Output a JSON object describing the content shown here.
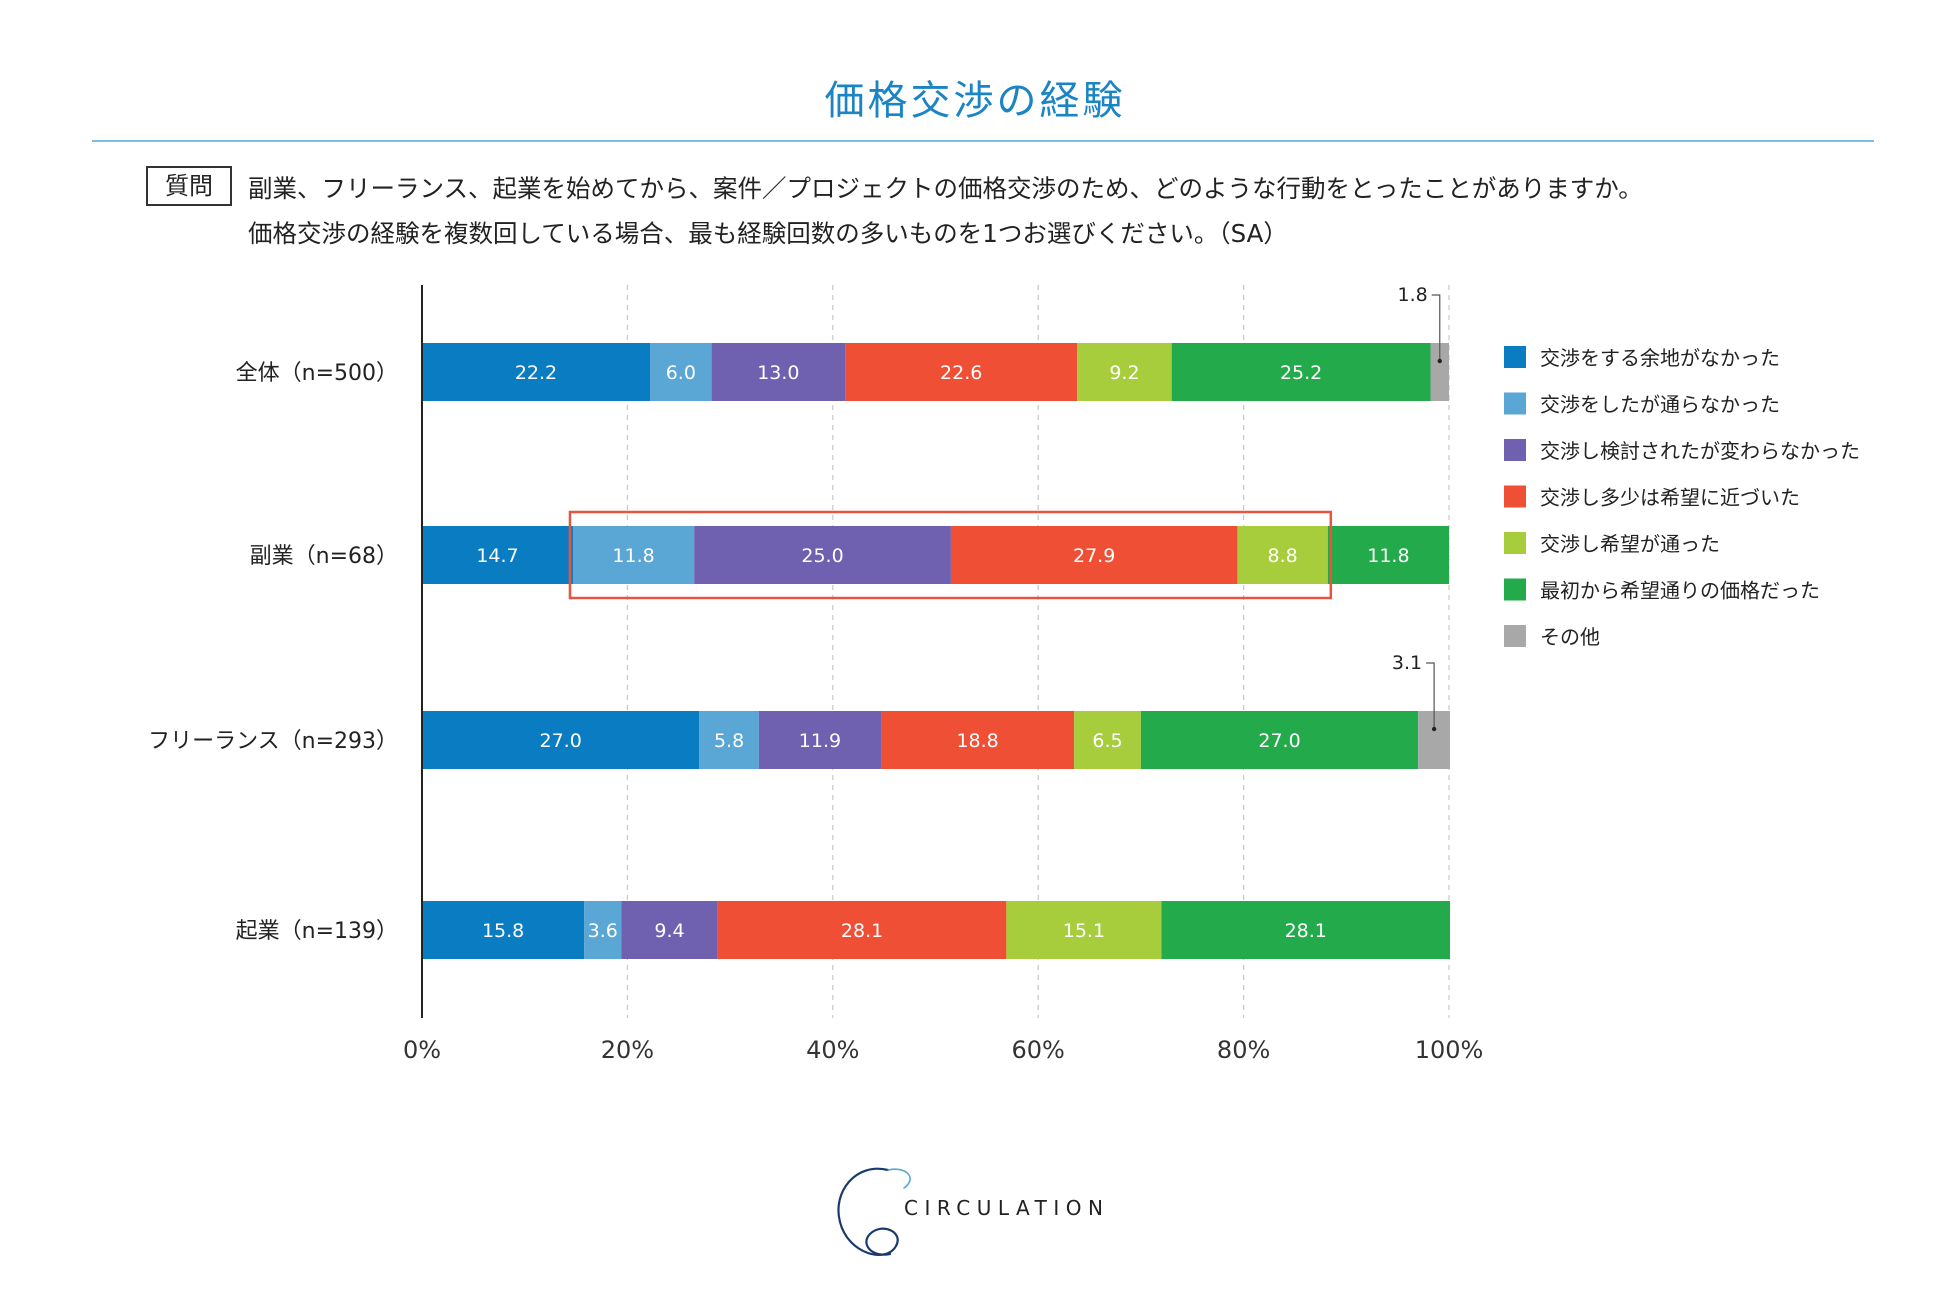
{
  "title": "価格交渉の経験",
  "question": {
    "label": "質問",
    "line1": "副業、フリーランス、起業を始めてから、案件／プロジェクトの価格交渉のため、どのような行動をとったことがありますか。",
    "line2": "価格交渉の経験を複数回している場合、最も経験回数の多いものを1つお選びください。（SA）"
  },
  "chart_data": {
    "type": "bar",
    "orientation": "horizontal",
    "stacked": true,
    "title": "価格交渉の経験",
    "categories": [
      "全体（n=500）",
      "副業（n=68）",
      "フリーランス（n=293）",
      "起業（n=139）"
    ],
    "series": [
      {
        "name": "交渉をする余地がなかった",
        "color": "#0a7cc1",
        "values": [
          22.2,
          14.7,
          27.0,
          15.8
        ]
      },
      {
        "name": "交渉をしたが通らなかった",
        "color": "#5aa6d4",
        "values": [
          6.0,
          11.8,
          5.8,
          3.6
        ]
      },
      {
        "name": "交渉し検討されたが変わらなかった",
        "color": "#7060b0",
        "values": [
          13.0,
          25.0,
          11.9,
          9.4
        ]
      },
      {
        "name": "交渉し多少は希望に近づいた",
        "color": "#ef4f34",
        "values": [
          22.6,
          27.9,
          18.8,
          28.1
        ]
      },
      {
        "name": "交渉し希望が通った",
        "color": "#a8cd3c",
        "values": [
          9.2,
          8.8,
          6.5,
          15.1
        ]
      },
      {
        "name": "最初から希望通りの価格だった",
        "color": "#23aa4a",
        "values": [
          25.2,
          11.8,
          27.0,
          28.1
        ]
      },
      {
        "name": "その他",
        "color": "#a8a8a8",
        "values": [
          1.8,
          0,
          3.1,
          0
        ]
      }
    ],
    "value_labels": [
      [
        "22.2",
        "6.0",
        "13.0",
        "22.6",
        "9.2",
        "25.2",
        "1.8"
      ],
      [
        "14.7",
        "11.8",
        "25.0",
        "27.9",
        "8.8",
        "11.8",
        ""
      ],
      [
        "27.0",
        "5.8",
        "11.9",
        "18.8",
        "6.5",
        "27.0",
        "3.1"
      ],
      [
        "15.8",
        "3.6",
        "9.4",
        "28.1",
        "15.1",
        "28.1",
        ""
      ]
    ],
    "xlim": [
      0,
      100
    ],
    "xticks": [
      "0%",
      "20%",
      "40%",
      "60%",
      "80%",
      "100%"
    ],
    "gridlines": "dashed vertical",
    "legend_position": "right",
    "highlight": {
      "category_index": 1,
      "from_series": 1,
      "to_series": 4,
      "color": "#e8553e"
    }
  },
  "brand": {
    "name": "CIRCULATION",
    "color": "#1a3a6e"
  }
}
